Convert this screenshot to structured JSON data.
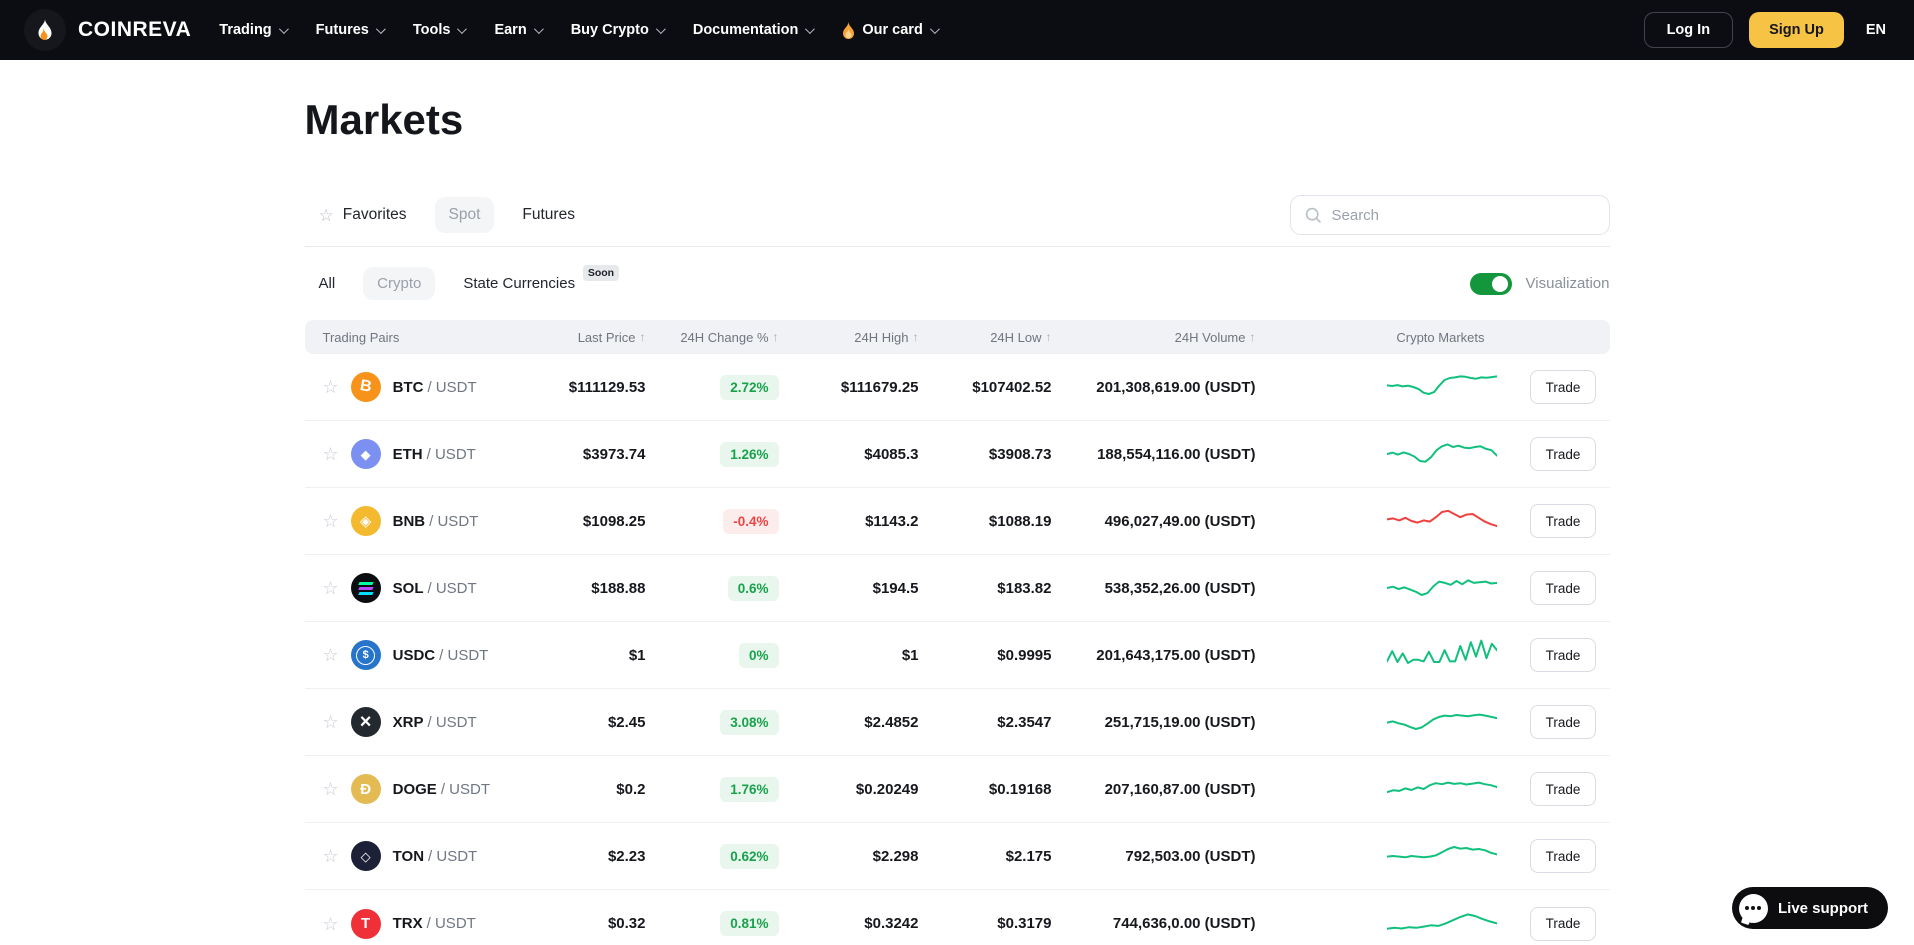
{
  "brand": {
    "name": "COINREVA"
  },
  "nav": {
    "items": [
      {
        "label": "Trading",
        "flame": false
      },
      {
        "label": "Futures",
        "flame": false
      },
      {
        "label": "Tools",
        "flame": false
      },
      {
        "label": "Earn",
        "flame": false
      },
      {
        "label": "Buy Crypto",
        "flame": false
      },
      {
        "label": "Documentation",
        "flame": false
      },
      {
        "label": "Our card",
        "flame": true
      }
    ],
    "login_label": "Log In",
    "signup_label": "Sign Up",
    "language": "EN"
  },
  "page": {
    "title": "Markets"
  },
  "tabs": {
    "favorites": "Favorites",
    "spot": "Spot",
    "futures": "Futures",
    "selected": "Spot"
  },
  "search": {
    "placeholder": "Search"
  },
  "filters": {
    "all": "All",
    "crypto": "Crypto",
    "state_currencies": "State Currencies",
    "soon_badge": "Soon",
    "selected": "Crypto",
    "visualization_label": "Visualization",
    "visualization_on": true
  },
  "table": {
    "columns": [
      {
        "label": "Trading Pairs",
        "sortable": false
      },
      {
        "label": "Last Price",
        "sortable": true
      },
      {
        "label": "24H Change %",
        "sortable": true
      },
      {
        "label": "24H High",
        "sortable": true
      },
      {
        "label": "24H Low",
        "sortable": true
      },
      {
        "label": "24H Volume",
        "sortable": true
      },
      {
        "label": "Crypto Markets",
        "sortable": false
      }
    ],
    "sort_icon": "↑",
    "star_icon": "☆",
    "trade_label": "Trade",
    "rows": [
      {
        "base": "BTC",
        "quote": "/ USDT",
        "icon": "btc",
        "price": "$111129.53",
        "change": "2.72%",
        "dir": "up",
        "high": "$111679.25",
        "low": "$107402.52",
        "volume": "201,308,619.00 (USDT)",
        "spark": [
          55,
          53,
          56,
          52,
          54,
          50,
          44,
          32,
          28,
          34,
          55,
          72,
          78,
          80,
          83,
          82,
          78,
          76,
          80,
          79,
          81,
          83
        ]
      },
      {
        "base": "ETH",
        "quote": "/ USDT",
        "icon": "eth",
        "price": "$3973.74",
        "change": "1.26%",
        "dir": "up",
        "high": "$4085.3",
        "low": "$3908.73",
        "volume": "188,554,116.00 (USDT)",
        "spark": [
          50,
          54,
          48,
          55,
          50,
          42,
          28,
          26,
          40,
          62,
          74,
          80,
          72,
          76,
          70,
          68,
          72,
          74,
          66,
          62,
          45
        ]
      },
      {
        "base": "BNB",
        "quote": "/ USDT",
        "icon": "bnb",
        "price": "$1098.25",
        "change": "-0.4%",
        "dir": "down",
        "high": "$1143.2",
        "low": "$1088.19",
        "volume": "496,027,49.00 (USDT)",
        "spark": [
          55,
          58,
          52,
          60,
          50,
          45,
          52,
          48,
          62,
          78,
          82,
          72,
          62,
          70,
          72,
          60,
          48,
          40,
          34
        ]
      },
      {
        "base": "SOL",
        "quote": "/ USDT",
        "icon": "sol",
        "price": "$188.88",
        "change": "0.6%",
        "dir": "up",
        "high": "$194.5",
        "low": "$183.82",
        "volume": "538,352,26.00 (USDT)",
        "spark": [
          50,
          54,
          47,
          52,
          45,
          38,
          28,
          34,
          55,
          70,
          66,
          60,
          72,
          62,
          74,
          66,
          68,
          70,
          64,
          66
        ]
      },
      {
        "base": "USDC",
        "quote": "/ USDT",
        "icon": "usdc",
        "price": "$1",
        "change": "0%",
        "dir": "up",
        "high": "$1",
        "low": "$0.9995",
        "volume": "201,643,175.00 (USDT)",
        "spark": [
          30,
          62,
          28,
          55,
          25,
          35,
          35,
          30,
          60,
          28,
          28,
          65,
          30,
          30,
          78,
          35,
          90,
          45,
          95,
          40,
          85,
          65
        ]
      },
      {
        "base": "XRP",
        "quote": "/ USDT",
        "icon": "xrp",
        "price": "$2.45",
        "change": "3.08%",
        "dir": "up",
        "high": "$2.4852",
        "low": "$2.3547",
        "volume": "251,715,19.00 (USDT)",
        "spark": [
          48,
          52,
          46,
          42,
          34,
          28,
          33,
          45,
          58,
          66,
          70,
          68,
          72,
          70,
          68,
          71,
          73,
          70,
          66,
          62
        ]
      },
      {
        "base": "DOGE",
        "quote": "/ USDT",
        "icon": "doge",
        "price": "$0.2",
        "change": "1.76%",
        "dir": "up",
        "high": "$0.20249",
        "low": "$0.19168",
        "volume": "207,160,87.00 (USDT)",
        "spark": [
          40,
          46,
          44,
          52,
          47,
          55,
          50,
          62,
          68,
          65,
          70,
          66,
          68,
          64,
          67,
          70,
          65,
          62,
          56
        ]
      },
      {
        "base": "TON",
        "quote": "/ USDT",
        "icon": "ton",
        "price": "$2.23",
        "change": "0.62%",
        "dir": "up",
        "high": "$2.298",
        "low": "$2.175",
        "volume": "792,503.00 (USDT)",
        "spark": [
          48,
          50,
          48,
          46,
          50,
          48,
          46,
          48,
          52,
          62,
          72,
          78,
          73,
          75,
          70,
          72,
          68,
          60,
          55
        ]
      },
      {
        "base": "TRX",
        "quote": "/ USDT",
        "icon": "trx",
        "price": "$0.32",
        "change": "0.81%",
        "dir": "up",
        "high": "$0.3242",
        "low": "$0.3179",
        "volume": "744,636,0.00 (USDT)",
        "spark": [
          35,
          38,
          36,
          40,
          38,
          42,
          46,
          44,
          52,
          62,
          72,
          80,
          75,
          66,
          58,
          52
        ]
      }
    ]
  },
  "support": {
    "label": "Live support"
  },
  "colors": {
    "accent_yellow": "#f6c344",
    "toggle_green": "#14963c",
    "spark_up": "#12c07e",
    "spark_down": "#f0413e",
    "pill_up_text": "#18a24a",
    "pill_down_text": "#ef4444",
    "navbar_bg": "#0b0d12"
  }
}
